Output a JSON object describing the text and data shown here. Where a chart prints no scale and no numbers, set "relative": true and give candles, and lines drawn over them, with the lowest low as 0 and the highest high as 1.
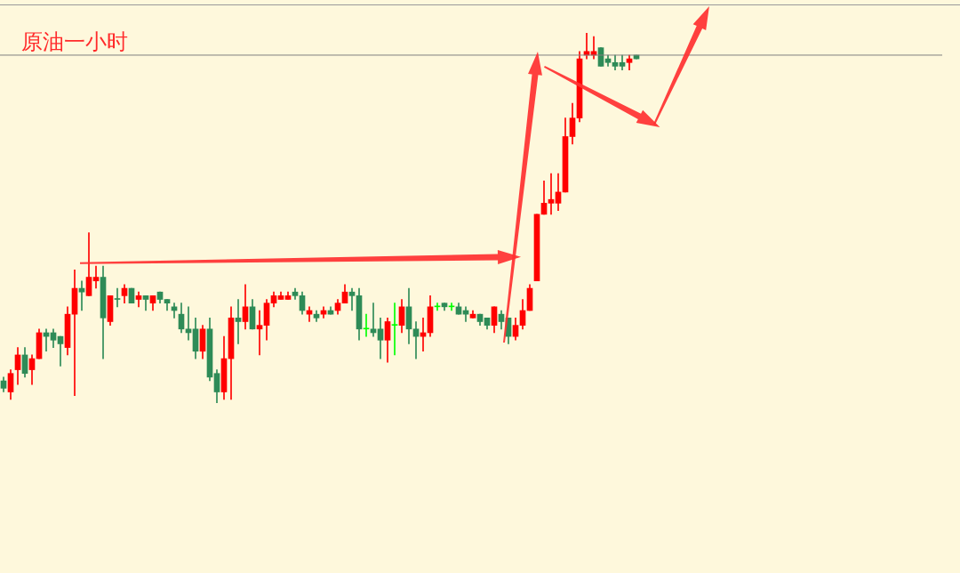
{
  "chart_data": {
    "type": "candlestick",
    "title": "原油一小时",
    "relative": true,
    "categories": [
      null,
      null,
      null,
      null,
      null,
      null,
      null,
      null,
      null,
      null,
      null,
      null,
      null,
      null,
      null,
      null,
      null,
      null,
      null,
      null,
      null,
      null,
      null,
      null,
      null,
      null,
      null,
      null,
      null,
      null,
      null,
      null,
      null,
      null,
      null,
      null,
      null,
      null,
      null,
      null,
      null,
      null,
      null,
      null,
      null,
      null,
      null,
      null,
      null,
      null,
      null,
      null,
      null,
      null,
      null,
      null,
      null,
      null,
      null,
      null,
      null,
      null,
      null,
      null,
      null,
      null,
      null,
      null,
      null,
      null,
      null,
      null,
      null,
      null,
      null,
      null,
      null,
      null,
      null,
      null,
      null,
      null,
      null,
      null,
      null,
      null,
      null,
      null,
      null,
      null
    ],
    "ohlc": [
      [
        0.06,
        0.07,
        0.03,
        0.04
      ],
      [
        0.03,
        0.09,
        0.01,
        0.08
      ],
      [
        0.09,
        0.15,
        0.05,
        0.13
      ],
      [
        0.13,
        0.15,
        0.07,
        0.08
      ],
      [
        0.09,
        0.13,
        0.05,
        0.12
      ],
      [
        0.12,
        0.2,
        0.12,
        0.19
      ],
      [
        0.19,
        0.2,
        0.14,
        0.18
      ],
      [
        0.19,
        0.2,
        0.15,
        0.17
      ],
      [
        0.18,
        0.18,
        0.1,
        0.16
      ],
      [
        0.15,
        0.26,
        0.13,
        0.24
      ],
      [
        0.24,
        0.36,
        0.02,
        0.31
      ],
      [
        0.31,
        0.33,
        0.25,
        0.3
      ],
      [
        0.29,
        0.46,
        0.29,
        0.34
      ],
      [
        0.33,
        0.37,
        0.31,
        0.34
      ],
      [
        0.34,
        0.37,
        0.12,
        0.23
      ],
      [
        0.22,
        0.29,
        0.21,
        0.29
      ],
      [
        0.28,
        0.31,
        0.26,
        0.28
      ],
      [
        0.29,
        0.32,
        0.27,
        0.31
      ],
      [
        0.31,
        0.31,
        0.27,
        0.27
      ],
      [
        0.28,
        0.3,
        0.26,
        0.29
      ],
      [
        0.29,
        0.29,
        0.25,
        0.28
      ],
      [
        0.27,
        0.29,
        0.25,
        0.29
      ],
      [
        0.3,
        0.3,
        0.27,
        0.28
      ],
      [
        0.28,
        0.28,
        0.25,
        0.27
      ],
      [
        0.26,
        0.27,
        0.23,
        0.25
      ],
      [
        0.24,
        0.27,
        0.19,
        0.2
      ],
      [
        0.2,
        0.26,
        0.17,
        0.19
      ],
      [
        0.2,
        0.23,
        0.12,
        0.14
      ],
      [
        0.14,
        0.21,
        0.12,
        0.2
      ],
      [
        0.2,
        0.23,
        0.06,
        0.07
      ],
      [
        0.08,
        0.09,
        0,
        0.03
      ],
      [
        0.03,
        0.18,
        0.01,
        0.12
      ],
      [
        0.12,
        0.26,
        0.01,
        0.23
      ],
      [
        0.23,
        0.28,
        0.16,
        0.22
      ],
      [
        0.22,
        0.32,
        0.2,
        0.26
      ],
      [
        0.26,
        0.28,
        0.2,
        0.2
      ],
      [
        0.2,
        0.25,
        0.13,
        0.21
      ],
      [
        0.21,
        0.28,
        0.17,
        0.27
      ],
      [
        0.27,
        0.3,
        0.26,
        0.29
      ],
      [
        0.28,
        0.3,
        0.28,
        0.29
      ],
      [
        0.28,
        0.3,
        0.28,
        0.29
      ],
      [
        0.3,
        0.31,
        0.28,
        0.29
      ],
      [
        0.29,
        0.3,
        0.24,
        0.25
      ],
      [
        0.24,
        0.26,
        0.22,
        0.25
      ],
      [
        0.24,
        0.25,
        0.22,
        0.23
      ],
      [
        0.24,
        0.26,
        0.23,
        0.25
      ],
      [
        0.25,
        0.26,
        0.24,
        0.24
      ],
      [
        0.25,
        0.28,
        0.24,
        0.27
      ],
      [
        0.27,
        0.32,
        0.27,
        0.3
      ],
      [
        0.3,
        0.31,
        0.25,
        0.29
      ],
      [
        0.29,
        0.31,
        0.17,
        0.2
      ],
      [
        0.2,
        0.24,
        0.18,
        0.2
      ],
      [
        0.2,
        0.27,
        0.18,
        0.19
      ],
      [
        0.2,
        0.23,
        0.12,
        0.17
      ],
      [
        0.17,
        0.23,
        0.11,
        0.22
      ],
      [
        0.21,
        0.27,
        0.13,
        0.21
      ],
      [
        0.21,
        0.28,
        0.19,
        0.26
      ],
      [
        0.26,
        0.31,
        0.16,
        0.2
      ],
      [
        0.2,
        0.22,
        0.12,
        0.18
      ],
      [
        0.18,
        0.23,
        0.14,
        0.19
      ],
      [
        0.19,
        0.29,
        0.18,
        0.26
      ],
      [
        0.26,
        0.27,
        0.25,
        0.26
      ],
      [
        0.27,
        0.27,
        0.25,
        0.26
      ],
      [
        0.26,
        0.27,
        0.25,
        0.26
      ],
      [
        0.26,
        0.27,
        0.24,
        0.24
      ],
      [
        0.25,
        0.26,
        0.22,
        0.24
      ],
      [
        0.23,
        0.25,
        0.23,
        0.24
      ],
      [
        0.24,
        0.24,
        0.21,
        0.22
      ],
      [
        0.23,
        0.23,
        0.2,
        0.21
      ],
      [
        0.21,
        0.26,
        0.19,
        0.26
      ],
      [
        0.24,
        0.25,
        0.2,
        0.22
      ],
      [
        0.23,
        0.23,
        0.16,
        0.18
      ],
      [
        0.18,
        0.23,
        0.17,
        0.21
      ],
      [
        0.21,
        0.28,
        0.2,
        0.25
      ],
      [
        0.25,
        0.32,
        0.25,
        0.31
      ],
      [
        0.33,
        0.51,
        0.33,
        0.51
      ],
      [
        0.51,
        0.6,
        0.51,
        0.54
      ],
      [
        0.54,
        0.62,
        0.51,
        0.55
      ],
      [
        0.54,
        0.62,
        0.52,
        0.57
      ],
      [
        0.57,
        0.77,
        0.57,
        0.72
      ],
      [
        0.72,
        0.81,
        0.7,
        0.77
      ],
      [
        0.77,
        0.95,
        0.76,
        0.93
      ],
      [
        0.94,
        1,
        0.93,
        0.95
      ],
      [
        0.94,
        0.99,
        0.93,
        0.95
      ],
      [
        0.96,
        0.96,
        0.91,
        0.91
      ],
      [
        0.93,
        0.94,
        0.91,
        0.92
      ],
      [
        0.92,
        0.94,
        0.9,
        0.91
      ],
      [
        0.92,
        0.94,
        0.9,
        0.91
      ],
      [
        0.92,
        0.94,
        0.9,
        0.93
      ],
      [
        0.94,
        0.94,
        0.93,
        0.93
      ]
    ],
    "colors": [
      "#2e8b57",
      "#ff0000",
      "#ff0000",
      "#2e8b57",
      "#ff0000",
      "#ff0000",
      "#2e8b57",
      "#2e8b57",
      "#2e8b57",
      "#ff0000",
      "#ff0000",
      "#2e8b57",
      "#ff0000",
      "#ff0000",
      "#2e8b57",
      "#ff0000",
      "#2e8b57",
      "#ff0000",
      "#2e8b57",
      "#ff0000",
      "#2e8b57",
      "#ff0000",
      "#2e8b57",
      "#2e8b57",
      "#2e8b57",
      "#2e8b57",
      "#2e8b57",
      "#2e8b57",
      "#ff0000",
      "#2e8b57",
      "#2e8b57",
      "#ff0000",
      "#ff0000",
      "#2e8b57",
      "#ff0000",
      "#2e8b57",
      "#ff0000",
      "#ff0000",
      "#ff0000",
      "#ff0000",
      "#ff0000",
      "#2e8b57",
      "#2e8b57",
      "#ff0000",
      "#2e8b57",
      "#ff0000",
      "#2e8b57",
      "#ff0000",
      "#ff0000",
      "#2e8b57",
      "#2e8b57",
      "#00ff00",
      "#2e8b57",
      "#2e8b57",
      "#ff0000",
      "#00ff00",
      "#ff0000",
      "#2e8b57",
      "#2e8b57",
      "#ff0000",
      "#ff0000",
      "#00ff00",
      "#2e8b57",
      "#00ff00",
      "#2e8b57",
      "#2e8b57",
      "#ff0000",
      "#2e8b57",
      "#2e8b57",
      "#ff0000",
      "#2e8b57",
      "#2e8b57",
      "#ff0000",
      "#ff0000",
      "#ff0000",
      "#ff0000",
      "#ff0000",
      "#ff0000",
      "#ff0000",
      "#ff0000",
      "#ff0000",
      "#ff0000",
      "#ff0000",
      "#ff0000",
      "#2e8b57",
      "#2e8b57",
      "#2e8b57",
      "#2e8b57",
      "#ff0000",
      "#2e8b57"
    ],
    "ref_lines": [
      {
        "axis": "y",
        "value": 0.94,
        "color": "#7f7f7f"
      }
    ],
    "legend": false
  }
}
